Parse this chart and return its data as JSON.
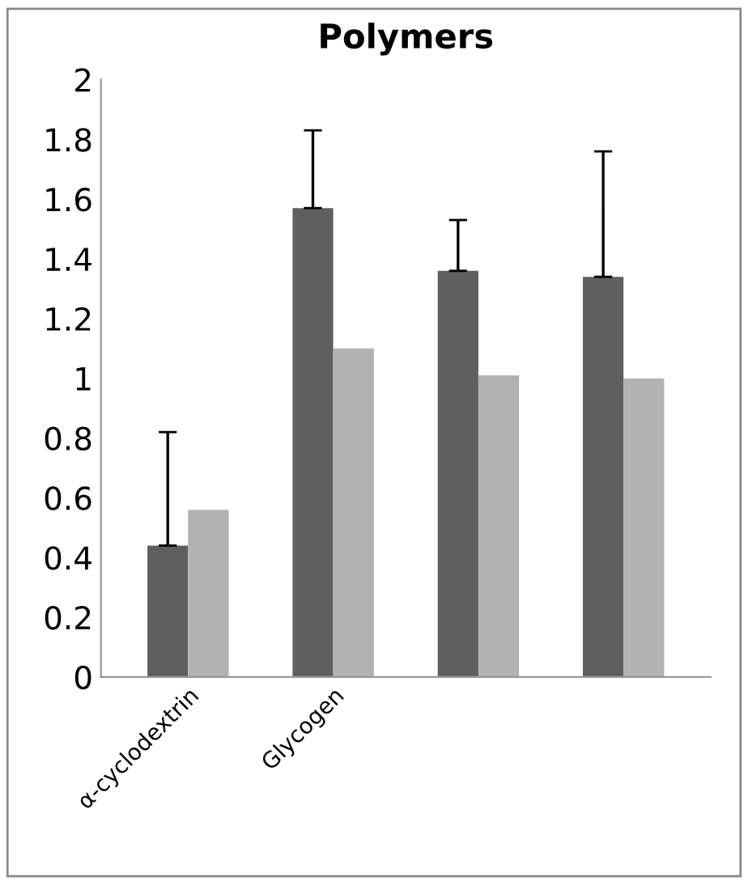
{
  "chart_data": {
    "type": "bar",
    "title": "Polymers",
    "categories": [
      "α-cyclodextrin",
      "Glycogen",
      null,
      null
    ],
    "series": [
      {
        "color": "#5f5f5f",
        "values": [
          0.44,
          1.57,
          1.36,
          1.34
        ],
        "errors": [
          [
            0.44,
            0.82
          ],
          [
            1.57,
            1.83
          ],
          [
            1.36,
            1.53
          ],
          [
            1.34,
            1.76
          ]
        ]
      },
      {
        "color": "#b2b2b2",
        "values": [
          0.56,
          1.1,
          1.01,
          1.0
        ]
      }
    ],
    "ylim": [
      0,
      2
    ],
    "yticks": [
      0,
      0.2,
      0.4,
      0.6,
      0.8,
      1,
      1.2,
      1.4,
      1.6,
      1.8,
      2
    ],
    "grid": false,
    "legend": false
  }
}
